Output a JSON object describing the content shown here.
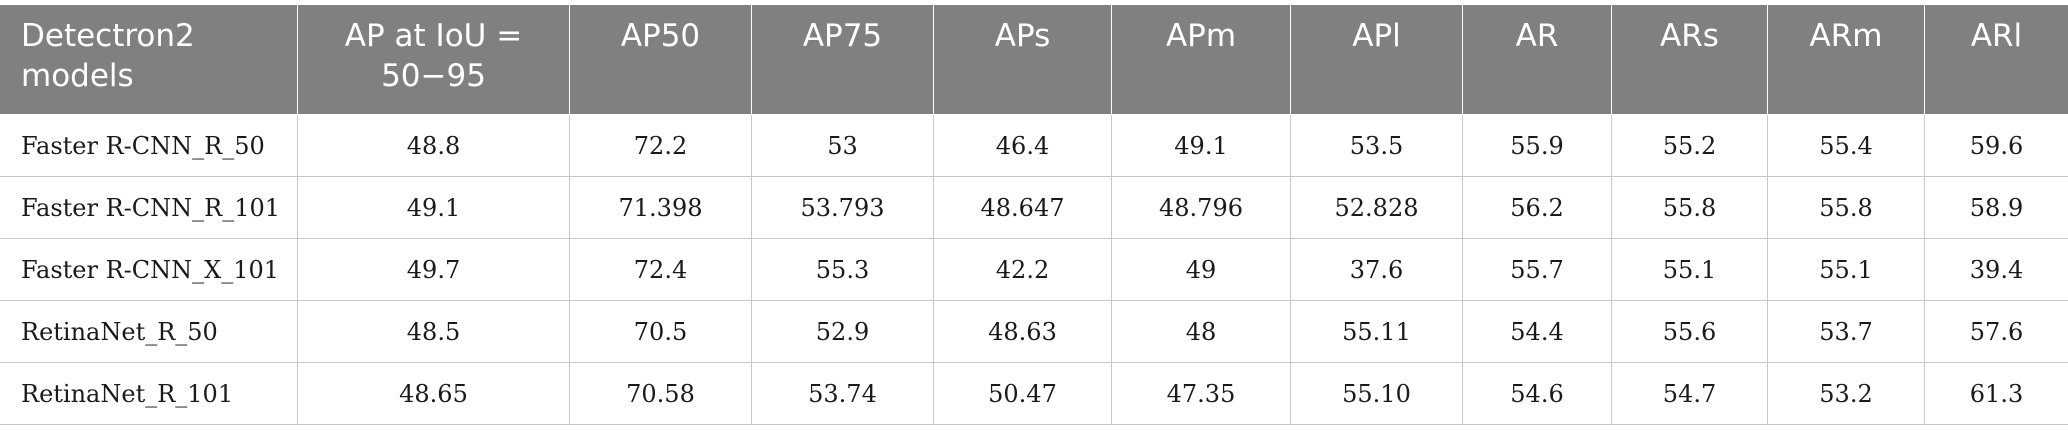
{
  "table": {
    "headers": [
      "Detectron2 models",
      "AP at IoU = 50−95",
      "AP50",
      "AP75",
      "APs",
      "APm",
      "APl",
      "AR",
      "ARs",
      "ARm",
      "ARl"
    ],
    "rows": [
      [
        "Faster R-CNN_R_50",
        "48.8",
        "72.2",
        "53",
        "46.4",
        "49.1",
        "53.5",
        "55.9",
        "55.2",
        "55.4",
        "59.6"
      ],
      [
        "Faster R-CNN_R_101",
        "49.1",
        "71.398",
        "53.793",
        "48.647",
        "48.796",
        "52.828",
        "56.2",
        "55.8",
        "55.8",
        "58.9"
      ],
      [
        "Faster R-CNN_X_101",
        "49.7",
        "72.4",
        "55.3",
        "42.2",
        "49",
        "37.6",
        "55.7",
        "55.1",
        "55.1",
        "39.4"
      ],
      [
        "RetinaNet_R_50",
        "48.5",
        "70.5",
        "52.9",
        "48.63",
        "48",
        "55.11",
        "54.4",
        "55.6",
        "53.7",
        "57.6"
      ],
      [
        "RetinaNet_R_101",
        "48.65",
        "70.58",
        "53.74",
        "50.47",
        "47.35",
        "55.10",
        "54.6",
        "54.7",
        "53.2",
        "61.3"
      ]
    ]
  }
}
